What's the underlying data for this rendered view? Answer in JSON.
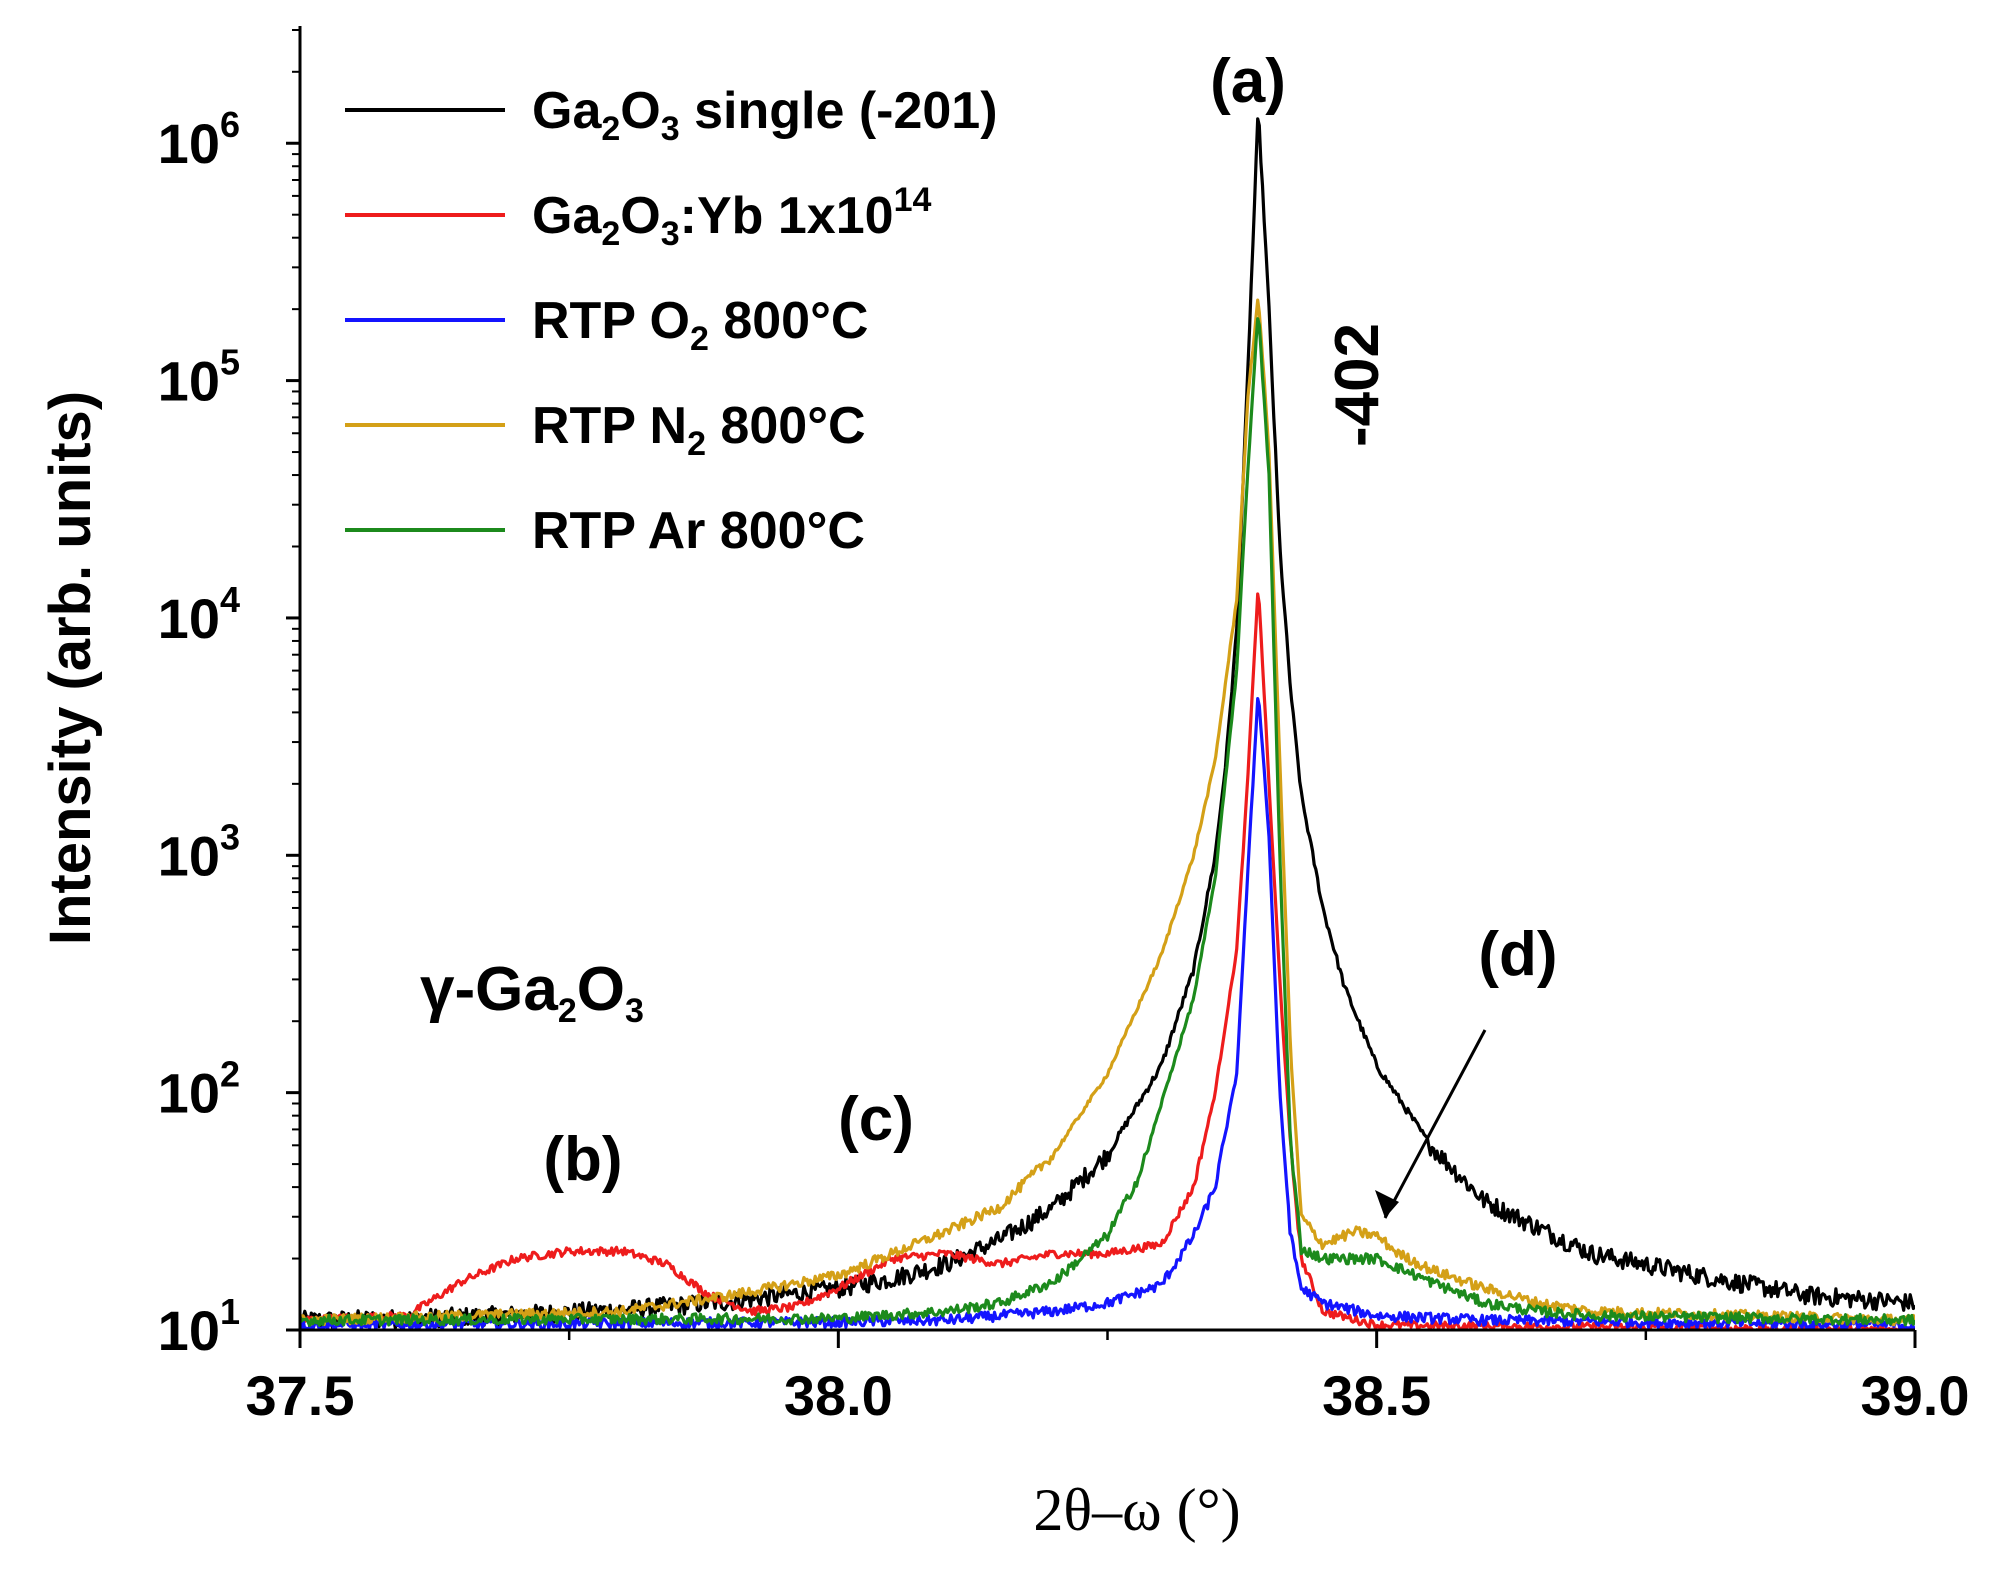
{
  "chart_data": {
    "type": "line",
    "title": "",
    "xlabel": "2θ–ω (°)",
    "ylabel": "Intensity (arb. units)",
    "xlim": [
      37.5,
      39.0
    ],
    "ylim": [
      10,
      3000000
    ],
    "yscale": "log",
    "x_ticks": [
      "37.5",
      "38.0",
      "38.5",
      "39.0"
    ],
    "y_ticks": [
      {
        "base": "10",
        "exp": "1"
      },
      {
        "base": "10",
        "exp": "2"
      },
      {
        "base": "10",
        "exp": "3"
      },
      {
        "base": "10",
        "exp": "4"
      },
      {
        "base": "10",
        "exp": "5"
      },
      {
        "base": "10",
        "exp": "6"
      }
    ],
    "legend_position": "top-left",
    "series": [
      {
        "name": "Ga2O3 single (-201)",
        "label_parts": [
          {
            "t": "Ga"
          },
          {
            "t": "2",
            "sub": true
          },
          {
            "t": "O"
          },
          {
            "t": "3",
            "sub": true
          },
          {
            "t": " single (-201)"
          }
        ],
        "color": "#000000",
        "noise": 0.09,
        "points": [
          [
            37.5,
            11
          ],
          [
            37.6,
            11.2
          ],
          [
            37.7,
            11.6
          ],
          [
            37.8,
            12.2
          ],
          [
            37.9,
            13.2
          ],
          [
            38.0,
            15
          ],
          [
            38.05,
            16.5
          ],
          [
            38.1,
            19
          ],
          [
            38.15,
            24
          ],
          [
            38.2,
            33
          ],
          [
            38.25,
            55
          ],
          [
            38.3,
            130
          ],
          [
            38.33,
            330
          ],
          [
            38.35,
            1000
          ],
          [
            38.36,
            2500
          ],
          [
            38.37,
            9000
          ],
          [
            38.38,
            100000
          ],
          [
            38.39,
            1400000
          ],
          [
            38.4,
            200000
          ],
          [
            38.41,
            20000
          ],
          [
            38.42,
            5000
          ],
          [
            38.43,
            1800
          ],
          [
            38.45,
            600
          ],
          [
            38.47,
            280
          ],
          [
            38.5,
            130
          ],
          [
            38.55,
            60
          ],
          [
            38.6,
            35
          ],
          [
            38.65,
            27
          ],
          [
            38.7,
            21
          ],
          [
            38.8,
            17
          ],
          [
            38.9,
            14
          ],
          [
            39.0,
            13
          ]
        ]
      },
      {
        "name": "Ga2O3:Yb 1x10^14",
        "label_parts": [
          {
            "t": "Ga"
          },
          {
            "t": "2",
            "sub": true
          },
          {
            "t": "O"
          },
          {
            "t": "3",
            "sub": true
          },
          {
            "t": ":Yb 1x10"
          },
          {
            "t": "14",
            "sup": true
          }
        ],
        "color": "#ee1c1c",
        "noise": 0.04,
        "points": [
          [
            37.5,
            11
          ],
          [
            37.6,
            11.5
          ],
          [
            37.65,
            16
          ],
          [
            37.7,
            20
          ],
          [
            37.75,
            21.5
          ],
          [
            37.8,
            21.5
          ],
          [
            37.84,
            19
          ],
          [
            37.88,
            14
          ],
          [
            37.92,
            12
          ],
          [
            37.96,
            12.5
          ],
          [
            38.0,
            15
          ],
          [
            38.05,
            20
          ],
          [
            38.1,
            21
          ],
          [
            38.15,
            19
          ],
          [
            38.2,
            21
          ],
          [
            38.25,
            21
          ],
          [
            38.3,
            23
          ],
          [
            38.33,
            40
          ],
          [
            38.35,
            100
          ],
          [
            38.37,
            400
          ],
          [
            38.38,
            2000
          ],
          [
            38.39,
            14000
          ],
          [
            38.4,
            2000
          ],
          [
            38.41,
            300
          ],
          [
            38.42,
            60
          ],
          [
            38.43,
            20
          ],
          [
            38.45,
            12
          ],
          [
            38.5,
            10.5
          ],
          [
            39.0,
            10
          ]
        ]
      },
      {
        "name": "RTP O2 800°C",
        "label_parts": [
          {
            "t": "RTP O"
          },
          {
            "t": "2",
            "sub": true
          },
          {
            "t": " 800°C"
          }
        ],
        "color": "#1414ff",
        "noise": 0.05,
        "points": [
          [
            37.5,
            10.5
          ],
          [
            38.0,
            10.8
          ],
          [
            38.1,
            11
          ],
          [
            38.2,
            12
          ],
          [
            38.25,
            13
          ],
          [
            38.3,
            15.5
          ],
          [
            38.33,
            25
          ],
          [
            38.35,
            40
          ],
          [
            38.37,
            120
          ],
          [
            38.38,
            800
          ],
          [
            38.39,
            5000
          ],
          [
            38.4,
            1200
          ],
          [
            38.41,
            100
          ],
          [
            38.42,
            25
          ],
          [
            38.43,
            15
          ],
          [
            38.45,
            13
          ],
          [
            38.5,
            11.5
          ],
          [
            38.6,
            11
          ],
          [
            39.0,
            10.5
          ]
        ]
      },
      {
        "name": "RTP N2 800°C",
        "label_parts": [
          {
            "t": "RTP N"
          },
          {
            "t": "2",
            "sub": true
          },
          {
            "t": " 800°C"
          }
        ],
        "color": "#d4a017",
        "noise": 0.05,
        "points": [
          [
            37.5,
            11
          ],
          [
            37.8,
            12
          ],
          [
            37.9,
            14
          ],
          [
            38.0,
            17
          ],
          [
            38.05,
            21
          ],
          [
            38.1,
            26
          ],
          [
            38.15,
            33
          ],
          [
            38.2,
            55
          ],
          [
            38.25,
            120
          ],
          [
            38.3,
            380
          ],
          [
            38.33,
            1000
          ],
          [
            38.35,
            2500
          ],
          [
            38.37,
            12000
          ],
          [
            38.38,
            80000
          ],
          [
            38.39,
            230000
          ],
          [
            38.4,
            50000
          ],
          [
            38.41,
            2500
          ],
          [
            38.42,
            150
          ],
          [
            38.43,
            30
          ],
          [
            38.45,
            23
          ],
          [
            38.48,
            26
          ],
          [
            38.5,
            25
          ],
          [
            38.52,
            21
          ],
          [
            38.55,
            18
          ],
          [
            38.6,
            15
          ],
          [
            38.65,
            13
          ],
          [
            38.7,
            12
          ],
          [
            39.0,
            11
          ]
        ]
      },
      {
        "name": "RTP Ar 800°C",
        "label_parts": [
          {
            "t": "RTP Ar 800°C"
          }
        ],
        "color": "#1c8a1c",
        "noise": 0.05,
        "points": [
          [
            37.5,
            11
          ],
          [
            38.0,
            11.2
          ],
          [
            38.1,
            12
          ],
          [
            38.15,
            13
          ],
          [
            38.2,
            16
          ],
          [
            38.25,
            25
          ],
          [
            38.28,
            45
          ],
          [
            38.3,
            90
          ],
          [
            38.33,
            250
          ],
          [
            38.35,
            800
          ],
          [
            38.37,
            6000
          ],
          [
            38.38,
            40000
          ],
          [
            38.39,
            200000
          ],
          [
            38.4,
            40000
          ],
          [
            38.41,
            1000
          ],
          [
            38.42,
            60
          ],
          [
            38.43,
            22
          ],
          [
            38.45,
            20
          ],
          [
            38.5,
            20
          ],
          [
            38.55,
            16
          ],
          [
            38.6,
            13
          ],
          [
            38.65,
            12
          ],
          [
            38.7,
            11.5
          ],
          [
            39.0,
            11
          ]
        ]
      }
    ],
    "annotations": [
      {
        "id": "a",
        "text": "(a)"
      },
      {
        "id": "b",
        "text": "(b)"
      },
      {
        "id": "c",
        "text": "(c)"
      },
      {
        "id": "d",
        "text": "(d)"
      },
      {
        "id": "peak",
        "text": "-402"
      },
      {
        "id": "phase",
        "text": "γ-Ga",
        "parts": [
          {
            "t": "γ-Ga"
          },
          {
            "t": "2",
            "sub": true
          },
          {
            "t": "O"
          },
          {
            "t": "3",
            "sub": true
          }
        ]
      }
    ]
  }
}
